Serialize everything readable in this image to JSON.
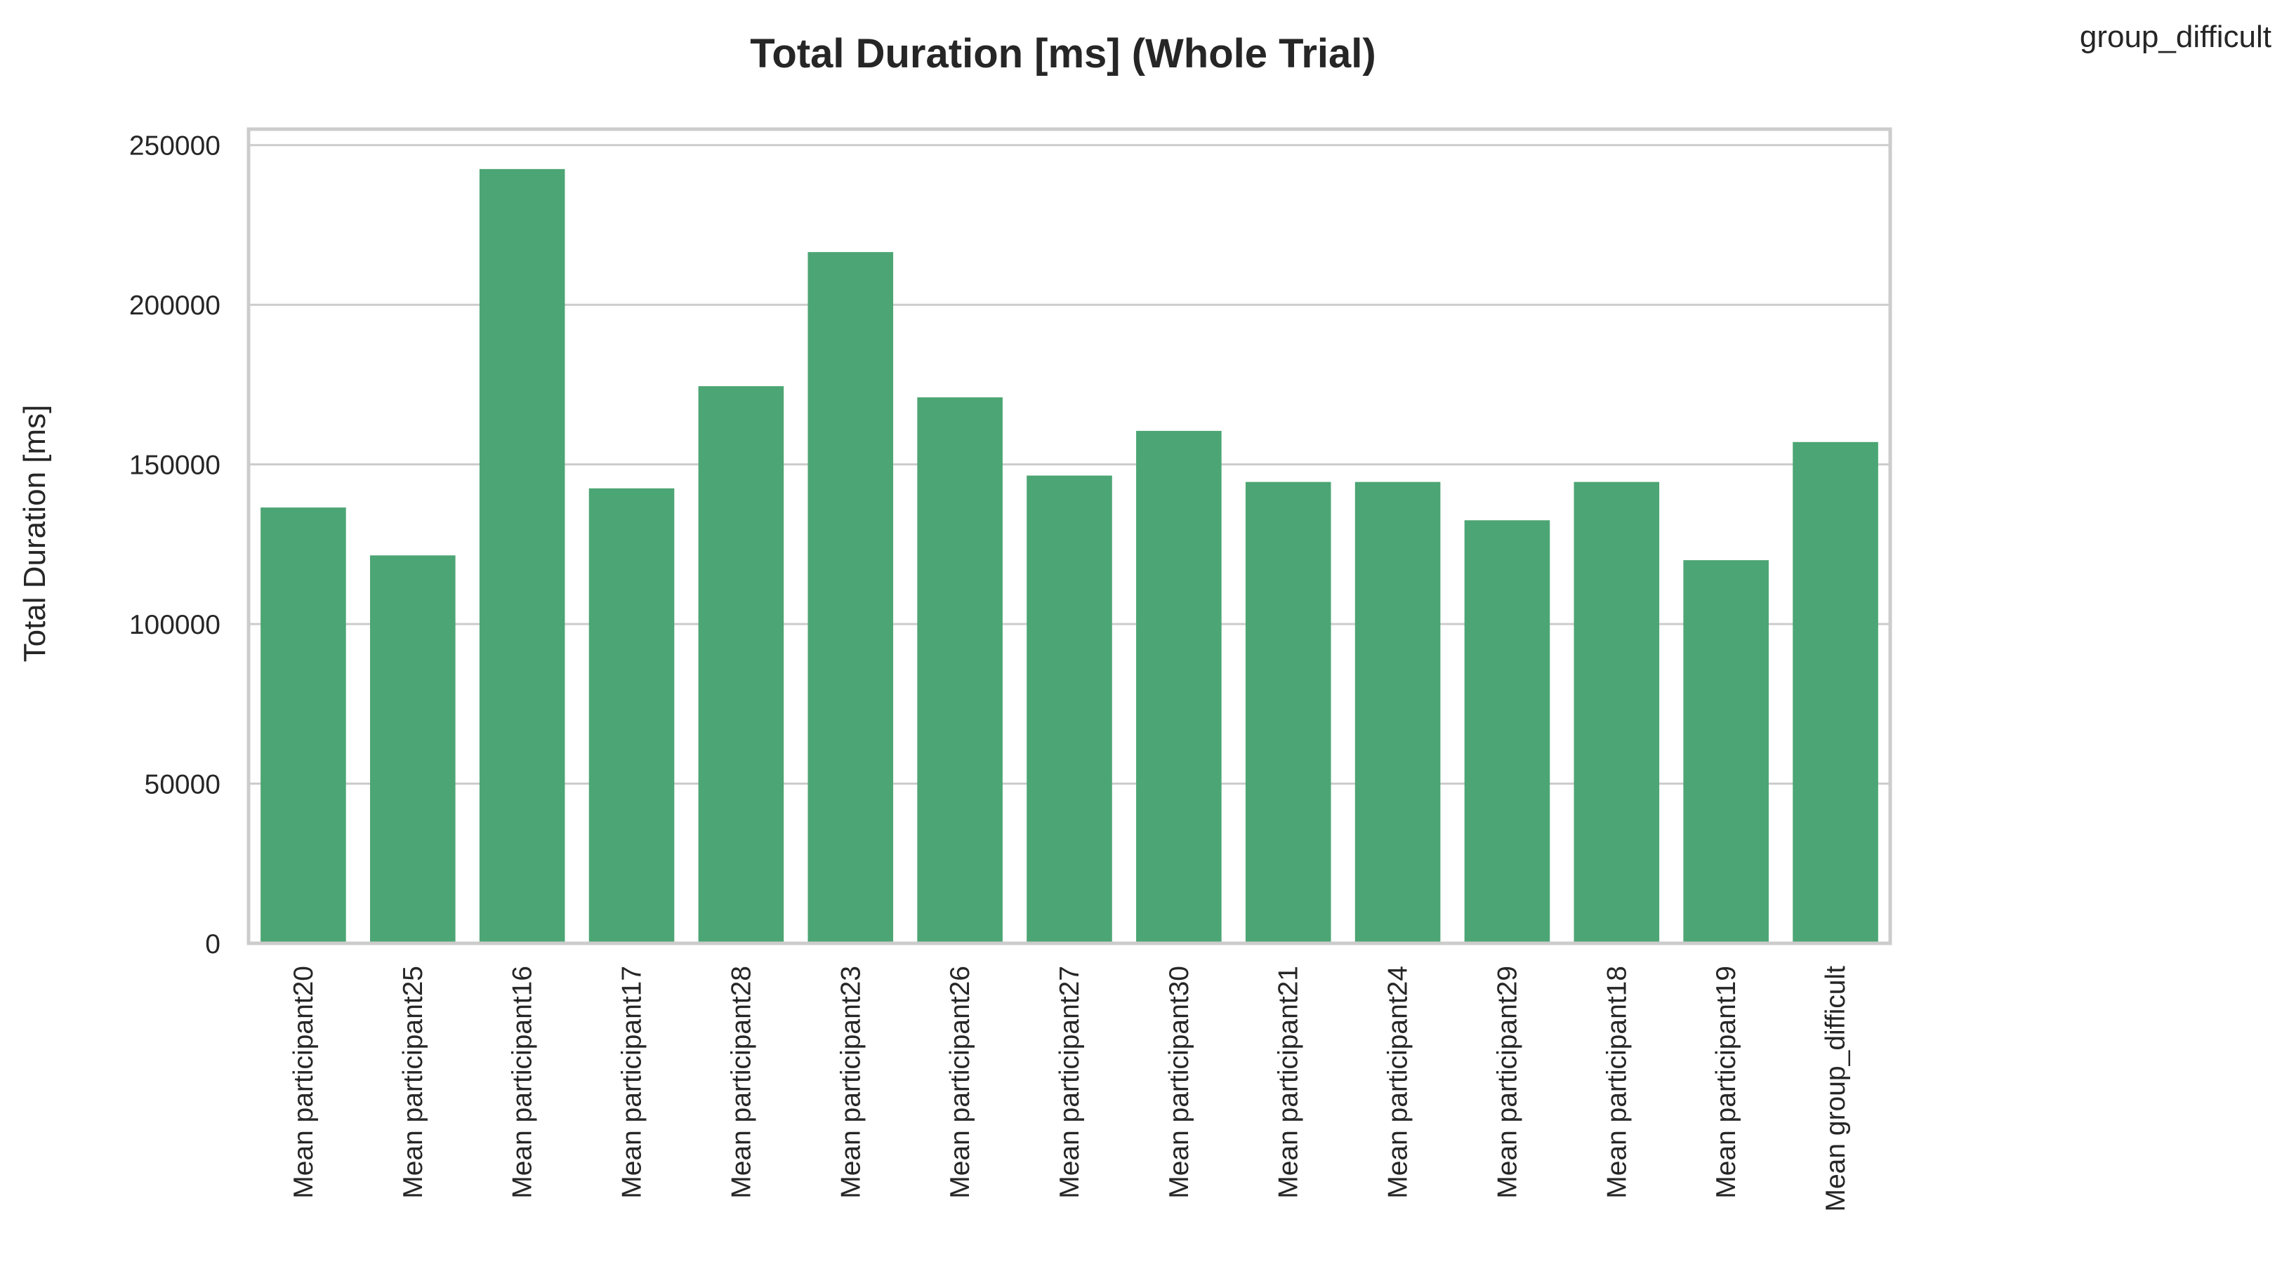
{
  "chart_data": {
    "type": "bar",
    "title": "Total Duration [ms] (Whole Trial)",
    "corner_label": "group_difficult",
    "xlabel": "",
    "ylabel": "Total Duration [ms]",
    "ylim": [
      0,
      255000
    ],
    "yticks": [
      0,
      50000,
      100000,
      150000,
      200000,
      250000
    ],
    "grid": true,
    "bar_color": "#4ca574",
    "categories": [
      "Mean participant20",
      "Mean participant25",
      "Mean participant16",
      "Mean participant17",
      "Mean participant28",
      "Mean participant23",
      "Mean participant26",
      "Mean participant27",
      "Mean participant30",
      "Mean participant21",
      "Mean participant24",
      "Mean participant29",
      "Mean participant18",
      "Mean participant19",
      "Mean group_difficult"
    ],
    "values": [
      136500,
      121500,
      242500,
      142500,
      174500,
      216500,
      171000,
      146500,
      160500,
      144500,
      144500,
      132500,
      144500,
      120000,
      157000
    ]
  }
}
